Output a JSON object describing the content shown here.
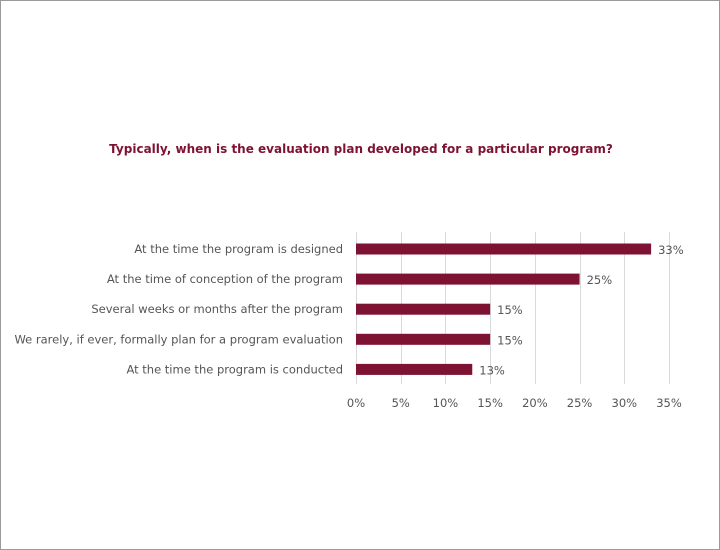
{
  "chart_data": {
    "type": "bar",
    "orientation": "horizontal",
    "title": "Typically, when is the evaluation plan developed for a particular program?",
    "categories": [
      "At the time the program is designed",
      "At the time of conception of the program",
      "Several weeks or months after the program",
      "We rarely, if ever, formally plan for a program evaluation",
      "At the time the program is conducted"
    ],
    "values": [
      33,
      25,
      15,
      15,
      13
    ],
    "value_labels": [
      "33%",
      "25%",
      "15%",
      "15%",
      "13%"
    ],
    "xlim": [
      0,
      35
    ],
    "x_ticks": [
      0,
      5,
      10,
      15,
      20,
      25,
      30,
      35
    ],
    "x_tick_labels": [
      "0%",
      "5%",
      "10%",
      "15%",
      "20%",
      "25%",
      "30%",
      "35%"
    ],
    "xlabel": "",
    "ylabel": "",
    "grid": "vertical",
    "legend": "none",
    "bar_color": "#7e1232",
    "title_color": "#7e1232"
  }
}
